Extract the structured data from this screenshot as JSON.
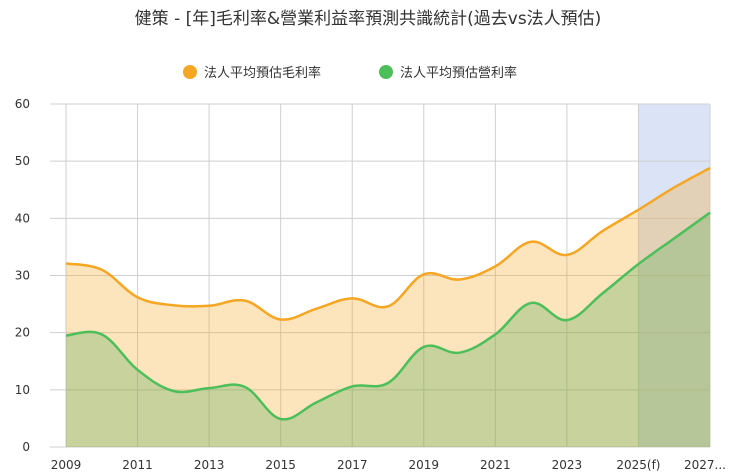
{
  "chart_data": {
    "type": "area",
    "title": "健策 - [年]毛利率&營業利益率預測共識統計(過去vs法人預估)",
    "xlabel": "",
    "ylabel": "",
    "ylim": [
      0,
      60
    ],
    "yticks": [
      0,
      10,
      20,
      30,
      40,
      50,
      60
    ],
    "grid": true,
    "legend_position": "top-center",
    "x": [
      2009,
      2010,
      2011,
      2012,
      2013,
      2014,
      2015,
      2016,
      2017,
      2018,
      2019,
      2020,
      2021,
      2022,
      2023,
      2024,
      2025,
      2026,
      2027
    ],
    "x_tick_labels": [
      "2009",
      "2011",
      "2013",
      "2015",
      "2017",
      "2019",
      "2021",
      "2023",
      "2025(f)",
      "2027..."
    ],
    "forecast_band": [
      2025,
      2027
    ],
    "series": [
      {
        "name": "法人平均預估毛利率",
        "color": "#F5A623",
        "fill": "rgba(245,166,35,0.30)",
        "values": [
          32.1,
          31.0,
          26.2,
          24.8,
          24.7,
          25.6,
          22.3,
          24.2,
          26.0,
          24.6,
          30.2,
          29.3,
          31.6,
          35.9,
          33.6,
          37.8,
          41.5,
          45.4,
          48.8
        ]
      },
      {
        "name": "法人平均預估營利率",
        "color": "#4CBF5A",
        "fill": "rgba(88,175,90,0.32)",
        "values": [
          19.5,
          19.7,
          13.5,
          9.8,
          10.3,
          10.5,
          4.9,
          7.8,
          10.6,
          11.2,
          17.5,
          16.5,
          19.7,
          25.2,
          22.2,
          26.9,
          32.0,
          36.5,
          41.0
        ]
      }
    ]
  }
}
